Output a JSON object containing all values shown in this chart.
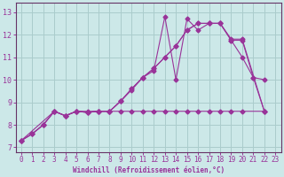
{
  "xlabel": "Windchill (Refroidissement éolien,°C)",
  "bg_color": "#cce8e8",
  "grid_color": "#aacccc",
  "line_color": "#993399",
  "axis_color": "#663366",
  "xlim": [
    -0.5,
    23.5
  ],
  "ylim": [
    6.8,
    13.4
  ],
  "xticks": [
    0,
    1,
    2,
    3,
    4,
    5,
    6,
    7,
    8,
    9,
    10,
    11,
    12,
    13,
    14,
    15,
    16,
    17,
    18,
    19,
    20,
    21,
    22,
    23
  ],
  "yticks": [
    7,
    8,
    9,
    10,
    11,
    12,
    13
  ],
  "line1_x": [
    0,
    1,
    2,
    3,
    4,
    5,
    6,
    7,
    8,
    9,
    10,
    11,
    12,
    13,
    14,
    15,
    16,
    17,
    18,
    19,
    20,
    21,
    22
  ],
  "line1_y": [
    7.3,
    7.6,
    8.0,
    8.6,
    8.4,
    8.6,
    8.55,
    8.6,
    8.6,
    9.05,
    9.55,
    10.1,
    10.4,
    12.8,
    10.0,
    12.7,
    12.2,
    12.5,
    12.5,
    11.75,
    11.75,
    10.1,
    8.6
  ],
  "line2_x": [
    0,
    1,
    2,
    3,
    4,
    5,
    6,
    7,
    8,
    9,
    10,
    11,
    12,
    13,
    14,
    15,
    16,
    17,
    18,
    19,
    20,
    21,
    22
  ],
  "line2_y": [
    7.3,
    7.6,
    8.0,
    8.6,
    8.4,
    8.6,
    8.55,
    8.6,
    8.6,
    9.05,
    9.6,
    10.1,
    10.5,
    11.0,
    11.5,
    12.2,
    12.5,
    12.5,
    12.5,
    11.75,
    11.0,
    10.1,
    10.0
  ],
  "line3_x": [
    0,
    1,
    2,
    3,
    4,
    5,
    6,
    7,
    8,
    9,
    10,
    11,
    12,
    13,
    14,
    15,
    16,
    17,
    18,
    19,
    20,
    22
  ],
  "line3_y": [
    7.3,
    7.6,
    8.0,
    8.6,
    8.4,
    8.6,
    8.55,
    8.6,
    8.6,
    9.05,
    9.6,
    10.1,
    10.5,
    11.0,
    11.5,
    12.2,
    12.5,
    12.5,
    12.5,
    11.8,
    11.8,
    8.6
  ],
  "line4_x": [
    0,
    3,
    4,
    5,
    6,
    7,
    8,
    9,
    10,
    11,
    12,
    13,
    14,
    15,
    16,
    17,
    18,
    19,
    20,
    22
  ],
  "line4_y": [
    7.3,
    8.6,
    8.4,
    8.6,
    8.6,
    8.6,
    8.6,
    8.6,
    8.6,
    8.6,
    8.6,
    8.6,
    8.6,
    8.6,
    8.6,
    8.6,
    8.6,
    8.6,
    8.6,
    8.6
  ],
  "marker": "D",
  "markersize": 2.5,
  "linewidth": 0.8,
  "tick_fontsize": 5.5
}
